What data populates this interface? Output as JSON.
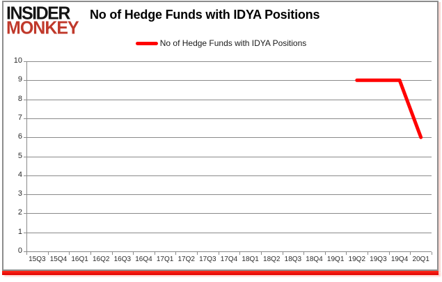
{
  "logo": {
    "line1": "INSIDER",
    "line2": "MONKEY"
  },
  "header": {
    "title": "No of Hedge Funds with IDYA Positions"
  },
  "legend": {
    "label": "No of Hedge Funds with IDYA Positions"
  },
  "colors": {
    "series_line": "#ff0000",
    "logo_black": "#141414",
    "logo_red": "#c0392b",
    "grid_grey": "#8a8a8a",
    "border_grey": "#8c8c8c",
    "bottom_bar_red": "#ff0000"
  },
  "chart_data": {
    "type": "line",
    "title": "No of Hedge Funds with IDYA Positions",
    "xlabel": "",
    "ylabel": "",
    "categories": [
      "15Q3",
      "15Q4",
      "16Q1",
      "16Q2",
      "16Q3",
      "16Q4",
      "17Q1",
      "17Q2",
      "17Q3",
      "17Q4",
      "18Q1",
      "18Q2",
      "18Q3",
      "18Q4",
      "19Q1",
      "19Q2",
      "19Q3",
      "19Q4",
      "20Q1"
    ],
    "series": [
      {
        "name": "No of Hedge Funds with IDYA Positions",
        "color": "#ff0000",
        "values": [
          null,
          null,
          null,
          null,
          null,
          null,
          null,
          null,
          null,
          null,
          null,
          null,
          null,
          null,
          null,
          9,
          9,
          9,
          6
        ]
      }
    ],
    "ylim": [
      0,
      10
    ],
    "ytick_step": 1,
    "grid": true,
    "legend_position": "top"
  }
}
